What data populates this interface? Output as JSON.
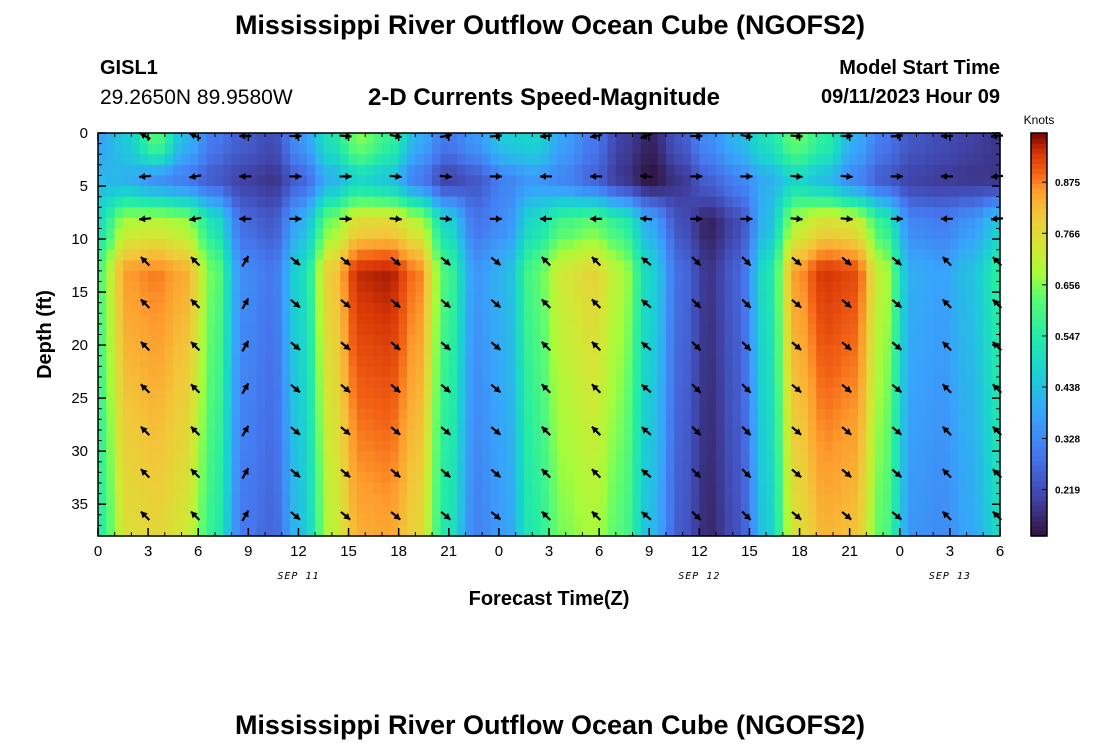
{
  "header": {
    "title": "Mississippi River Outflow Ocean Cube (NGOFS2)",
    "station": "GISL1",
    "coords": "29.2650N  89.9580W",
    "subtitle": "2-D Currents Speed-Magnitude",
    "model_start_label": "Model Start Time",
    "model_start_value": "09/11/2023 Hour 09"
  },
  "footer": {
    "title": "Mississippi River Outflow Ocean Cube (NGOFS2)"
  },
  "chart_data": {
    "type": "heatmap",
    "title": "2-D Currents Speed-Magnitude",
    "xlabel": "Forecast Time(Z)",
    "ylabel": "Depth (ft)",
    "x_range": [
      0,
      54
    ],
    "y_range": [
      0,
      38
    ],
    "x_ticks": [
      0,
      3,
      6,
      9,
      12,
      15,
      18,
      21,
      24,
      27,
      30,
      33,
      36,
      39,
      42,
      45,
      48,
      51,
      54
    ],
    "x_tick_labels": [
      "0",
      "3",
      "6",
      "9",
      "12",
      "15",
      "18",
      "21",
      "0",
      "3",
      "6",
      "9",
      "12",
      "15",
      "18",
      "21",
      "0",
      "3",
      "6"
    ],
    "y_ticks": [
      0,
      5,
      10,
      15,
      20,
      25,
      30,
      35
    ],
    "y_tick_labels": [
      "0",
      "5",
      "10",
      "15",
      "20",
      "25",
      "30",
      "35"
    ],
    "date_labels": [
      {
        "x": 12,
        "text": "SEP 11"
      },
      {
        "x": 36,
        "text": "SEP 12"
      },
      {
        "x": 51,
        "text": "SEP 13"
      }
    ],
    "colorbar": {
      "title": "Knots",
      "min": 0.12,
      "max": 0.98,
      "ticks": [
        0.219,
        0.328,
        0.438,
        0.547,
        0.656,
        0.766,
        0.875
      ],
      "tick_labels": [
        "0.219",
        "0.328",
        "0.438",
        "0.547",
        "0.656",
        "0.766",
        "0.875"
      ]
    },
    "layers": {
      "depths": [
        0,
        4,
        8,
        12,
        16,
        20,
        24,
        28,
        32,
        36
      ],
      "surface_speed": [
        0.38,
        0.46,
        0.62,
        0.42,
        0.3,
        0.25,
        0.22,
        0.36,
        0.52,
        0.66,
        0.58,
        0.4,
        0.3,
        0.36,
        0.46,
        0.48,
        0.38,
        0.3,
        0.2,
        0.15,
        0.24,
        0.34,
        0.42,
        0.52,
        0.64,
        0.56,
        0.4,
        0.3,
        0.24,
        0.22,
        0.2,
        0.18
      ],
      "mid_speed": [
        0.42,
        0.4,
        0.34,
        0.3,
        0.24,
        0.2,
        0.18,
        0.26,
        0.4,
        0.48,
        0.44,
        0.3,
        0.2,
        0.24,
        0.32,
        0.36,
        0.32,
        0.26,
        0.18,
        0.12,
        0.18,
        0.26,
        0.32,
        0.4,
        0.48,
        0.42,
        0.32,
        0.24,
        0.2,
        0.19,
        0.18,
        0.18
      ],
      "deep_speed": [
        0.62,
        0.86,
        0.88,
        0.84,
        0.64,
        0.34,
        0.3,
        0.5,
        0.8,
        0.95,
        0.96,
        0.88,
        0.6,
        0.36,
        0.42,
        0.62,
        0.74,
        0.78,
        0.7,
        0.48,
        0.28,
        0.18,
        0.26,
        0.52,
        0.86,
        0.94,
        0.92,
        0.7,
        0.4,
        0.38,
        0.44,
        0.56
      ]
    },
    "arrows": {
      "times": [
        3,
        6,
        9,
        12,
        15,
        18,
        21,
        24,
        27,
        30,
        33,
        36,
        39,
        42,
        45,
        48,
        51,
        54
      ],
      "surface_dir_deg": [
        -150,
        -155,
        180,
        0,
        5,
        10,
        -10,
        -5,
        175,
        170,
        160,
        0,
        10,
        5,
        0,
        -5,
        180,
        175
      ],
      "mid_dir_deg": [
        175,
        170,
        180,
        0,
        0,
        5,
        5,
        0,
        180,
        180,
        185,
        0,
        0,
        5,
        5,
        0,
        180,
        175
      ],
      "deep_dir_deg": [
        -135,
        -135,
        -60,
        40,
        40,
        40,
        40,
        40,
        -135,
        -135,
        -140,
        45,
        45,
        40,
        40,
        40,
        -135,
        -135
      ]
    }
  }
}
